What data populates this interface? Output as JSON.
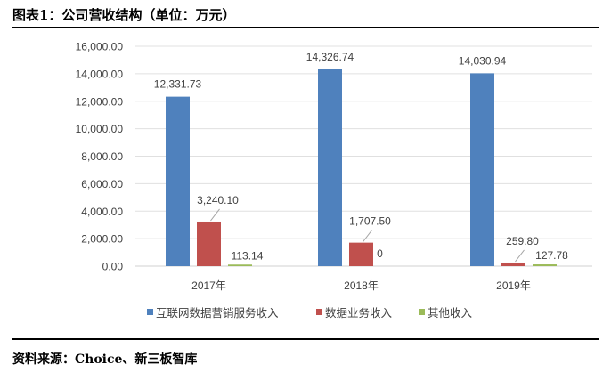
{
  "title": "图表1：公司营收结构（单位：万元）",
  "source": "资料来源：Choice、新三板智库",
  "chart_data": {
    "type": "bar",
    "categories": [
      "2017年",
      "2018年",
      "2019年"
    ],
    "series": [
      {
        "name": "互联网数据营销服务收入",
        "color": "#4F81BD",
        "values": [
          12331.73,
          14326.74,
          14030.94
        ],
        "labels": [
          "12,331.73",
          "14,326.74",
          "14,030.94"
        ]
      },
      {
        "name": "数据业务收入",
        "color": "#C0504D",
        "values": [
          3240.1,
          1707.5,
          259.8
        ],
        "labels": [
          "3,240.10",
          "1,707.50",
          "259.80"
        ]
      },
      {
        "name": "其他收入",
        "color": "#9BBB59",
        "values": [
          113.14,
          0,
          127.78
        ],
        "labels": [
          "113.14",
          "0",
          "127.78"
        ]
      }
    ],
    "yticks": [
      "0.00",
      "2,000.00",
      "4,000.00",
      "6,000.00",
      "8,000.00",
      "10,000.00",
      "12,000.00",
      "14,000.00",
      "16,000.00"
    ],
    "ylim": [
      0,
      16000
    ],
    "grid": true,
    "legend": "bottom"
  }
}
